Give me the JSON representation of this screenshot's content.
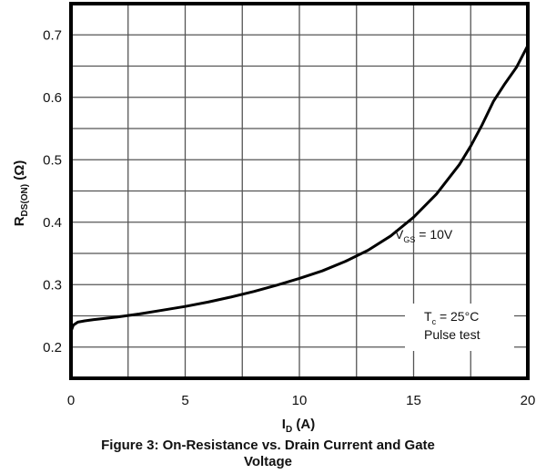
{
  "chart_data": {
    "type": "line",
    "title": "",
    "xlabel": {
      "main": "I",
      "sub": "D",
      "suffix": " (A)"
    },
    "ylabel": {
      "main": "R",
      "sub": "DS(ON)",
      "suffix": " (Ω)"
    },
    "xlim": [
      0,
      20
    ],
    "ylim": [
      0.15,
      0.75
    ],
    "x_ticks": [
      "0",
      "5",
      "10",
      "15",
      "20"
    ],
    "y_ticks": [
      "0.2",
      "0.3",
      "0.4",
      "0.5",
      "0.6",
      "0.7"
    ],
    "grid": true,
    "series": [
      {
        "x": [
          0.0,
          0.1,
          0.3,
          0.6,
          1,
          1.5,
          2,
          3,
          4,
          5,
          6,
          7,
          8,
          9,
          10,
          11,
          12,
          13,
          14,
          15,
          16,
          17,
          17.5,
          18,
          18.5,
          19,
          19.5,
          20
        ],
        "y": [
          0.225,
          0.235,
          0.24,
          0.242,
          0.244,
          0.246,
          0.248,
          0.253,
          0.259,
          0.265,
          0.272,
          0.28,
          0.289,
          0.299,
          0.31,
          0.322,
          0.337,
          0.355,
          0.378,
          0.408,
          0.445,
          0.492,
          0.522,
          0.556,
          0.594,
          0.622,
          0.648,
          0.683
        ]
      }
    ],
    "annotations": {
      "vgs": {
        "main": "V",
        "sub": "GS",
        "suffix": " = 10V"
      },
      "tc": {
        "main": "T",
        "sub": "c",
        "suffix": " = 25°C"
      },
      "pulse": "Pulse test"
    }
  },
  "caption": {
    "line1": "Figure 3: On-Resistance vs. Drain Current and Gate",
    "line2": "Voltage"
  },
  "colors": {
    "frame": "#000000",
    "grid": "#555555",
    "curve": "#000000",
    "text": "#111111"
  }
}
